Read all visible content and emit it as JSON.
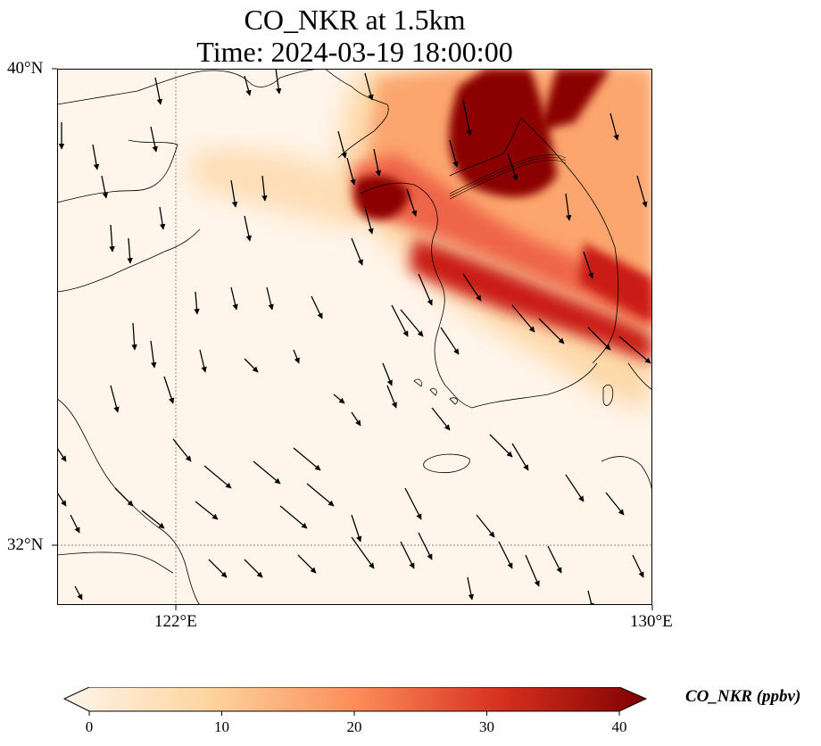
{
  "title": {
    "line1": "CO_NKR at 1.5km",
    "line2": "Time: 2024-03-19 18:00:00"
  },
  "axes": {
    "lat_ticks": [
      "40°N",
      "32°N"
    ],
    "lon_ticks": [
      "122°E",
      "130°E"
    ]
  },
  "colorbar": {
    "label": "CO_NKR (ppbv)",
    "ticks": [
      "0",
      "10",
      "20",
      "30",
      "40"
    ],
    "colors": [
      "#fff5eb",
      "#fdd49e",
      "#fc8d59",
      "#d7301f",
      "#7f0000"
    ]
  },
  "map": {
    "background_color": "#fff5eb",
    "plume_colors": [
      "#fdd8a8",
      "#fca56e",
      "#ef6548",
      "#c91c12",
      "#8b0000"
    ],
    "gridline_color": "#888888"
  }
}
